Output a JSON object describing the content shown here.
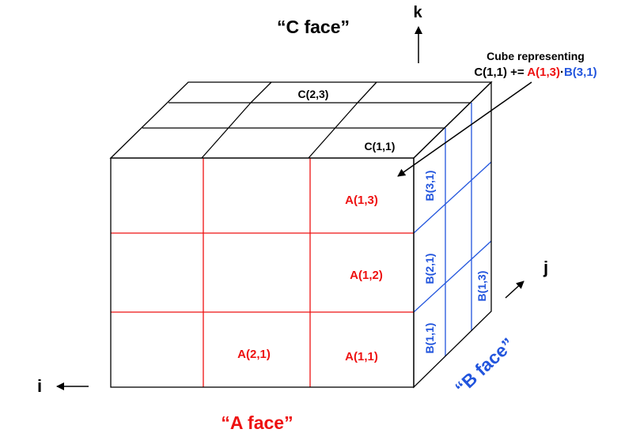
{
  "face_labels": {
    "c": "“C face”",
    "a": "“A face”",
    "b": "“B face”"
  },
  "axes": {
    "i": "i",
    "j": "j",
    "k": "k"
  },
  "callout": {
    "line1": "Cube representing",
    "prefix": "C(1,1) += ",
    "a_term": "A(1,3)",
    "dot": "·",
    "b_term": "B(3,1)"
  },
  "top_cells": {
    "c23": "C(2,3)",
    "c11": "C(1,1)"
  },
  "front_cells": {
    "a13": "A(1,3)",
    "a12": "A(1,2)",
    "a21": "A(2,1)",
    "a11": "A(1,1)"
  },
  "side_cells": {
    "b31": "B(3,1)",
    "b21": "B(2,1)",
    "b11": "B(1,1)",
    "b13": "B(1,3)"
  },
  "colors": {
    "a": "#ee1111",
    "b": "#2255dd",
    "c": "#000000"
  }
}
